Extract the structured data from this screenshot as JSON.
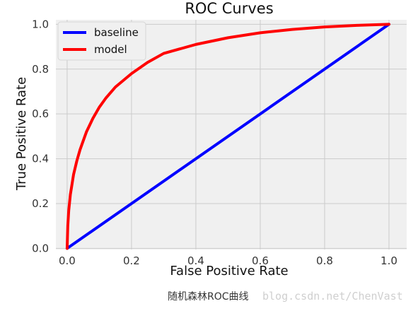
{
  "chart_data": {
    "type": "line",
    "title": "ROC Curves",
    "xlabel": "False Positive Rate",
    "ylabel": "True Positive Rate",
    "xlim": [
      -0.035,
      1.055
    ],
    "ylim": [
      -0.005,
      1.02
    ],
    "grid": true,
    "legend_position": "top-left",
    "x_ticks": [
      0.0,
      0.2,
      0.4,
      0.6,
      0.8,
      1.0
    ],
    "x_tick_labels": [
      "0.0",
      "0.2",
      "0.4",
      "0.6",
      "0.8",
      "1.0"
    ],
    "y_ticks": [
      0.0,
      0.2,
      0.4,
      0.6,
      0.8,
      1.0
    ],
    "y_tick_labels": [
      "0.0",
      "0.2",
      "0.4",
      "0.6",
      "0.8",
      "1.0"
    ],
    "series": [
      {
        "name": "baseline",
        "color": "#0000ff",
        "x": [
          0.0,
          1.0
        ],
        "y": [
          0.0,
          1.0
        ]
      },
      {
        "name": "model",
        "color": "#ff0000",
        "x": [
          0.0,
          0.002,
          0.005,
          0.01,
          0.02,
          0.03,
          0.04,
          0.05,
          0.06,
          0.08,
          0.1,
          0.12,
          0.15,
          0.2,
          0.25,
          0.3,
          0.35,
          0.4,
          0.5,
          0.6,
          0.7,
          0.8,
          0.9,
          1.0
        ],
        "y": [
          0.0,
          0.1,
          0.17,
          0.24,
          0.33,
          0.39,
          0.44,
          0.48,
          0.52,
          0.58,
          0.63,
          0.67,
          0.72,
          0.78,
          0.83,
          0.87,
          0.89,
          0.91,
          0.94,
          0.962,
          0.977,
          0.988,
          0.995,
          1.0
        ]
      }
    ]
  },
  "footer": {
    "caption": "随机森林ROC曲线",
    "watermark": "blog.csdn.net/ChenVast"
  }
}
